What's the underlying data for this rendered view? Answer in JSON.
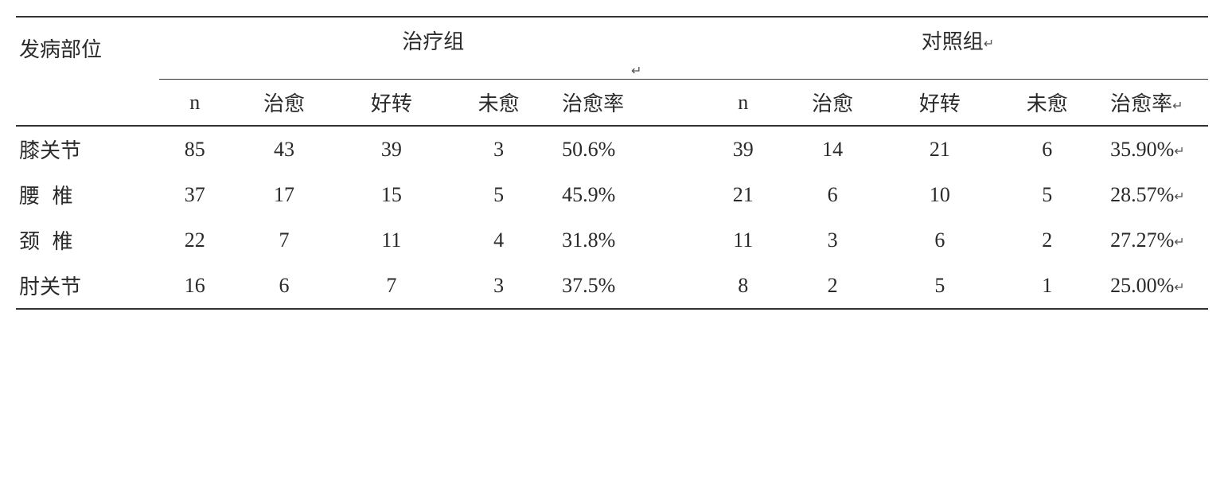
{
  "table": {
    "row_header": "发病部位",
    "group_a": "治疗组",
    "group_b": "对照组",
    "sub_headers": {
      "n": "n",
      "cured": "治愈",
      "improved": "好转",
      "uncured": "未愈",
      "rate": "治愈率"
    },
    "rows": [
      {
        "label": "膝关节",
        "spaced": false,
        "a": {
          "n": "85",
          "cured": "43",
          "improved": "39",
          "uncured": "3",
          "rate": "50.6%"
        },
        "b": {
          "n": "39",
          "cured": "14",
          "improved": "21",
          "uncured": "6",
          "rate": "35.90%"
        }
      },
      {
        "label": "腰椎",
        "spaced": true,
        "a": {
          "n": "37",
          "cured": "17",
          "improved": "15",
          "uncured": "5",
          "rate": "45.9%"
        },
        "b": {
          "n": "21",
          "cured": "6",
          "improved": "10",
          "uncured": "5",
          "rate": "28.57%"
        }
      },
      {
        "label": "颈椎",
        "spaced": true,
        "a": {
          "n": "22",
          "cured": "7",
          "improved": "11",
          "uncured": "4",
          "rate": "31.8%"
        },
        "b": {
          "n": "11",
          "cured": "3",
          "improved": "6",
          "uncured": "2",
          "rate": "27.27%"
        }
      },
      {
        "label": "肘关节",
        "spaced": false,
        "a": {
          "n": "16",
          "cured": "6",
          "improved": "7",
          "uncured": "3",
          "rate": "37.5%"
        },
        "b": {
          "n": "8",
          "cured": "2",
          "improved": "5",
          "uncured": "1",
          "rate": "25.00%"
        }
      }
    ],
    "colors": {
      "text": "#2a2a2a",
      "border": "#333333",
      "background": "#ffffff"
    },
    "font_size_pt": 20,
    "col_widths_pct": [
      12,
      6,
      9,
      9,
      9,
      13,
      6,
      9,
      9,
      9,
      13
    ]
  },
  "marker": "↵"
}
